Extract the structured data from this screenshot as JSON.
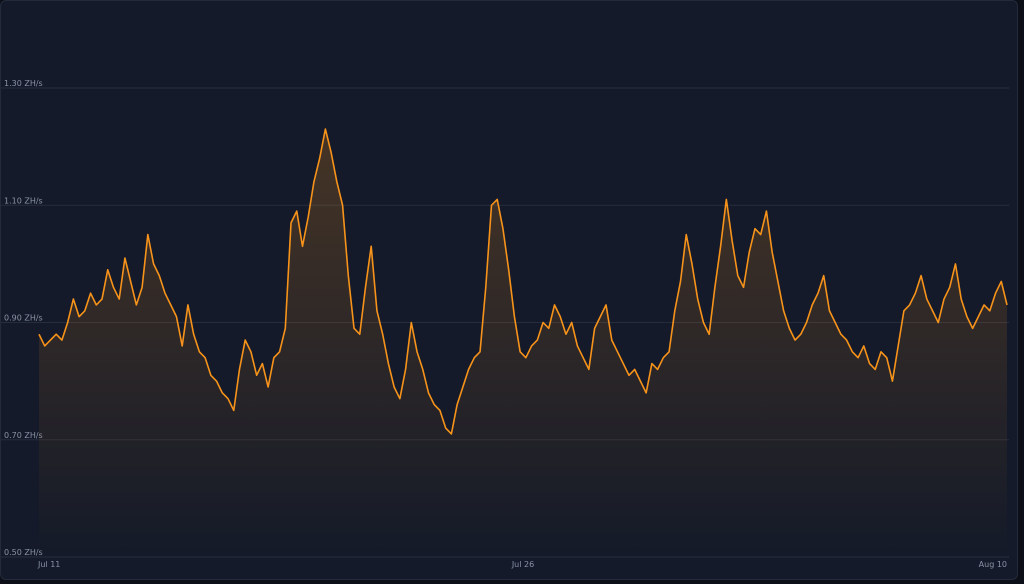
{
  "chart_data": {
    "type": "area",
    "title": "",
    "xlabel": "",
    "ylabel": "",
    "ylim": [
      0.5,
      1.3
    ],
    "y_unit": "ZH/s",
    "y_ticks": [
      "0.50 ZH/s",
      "0.70 ZH/s",
      "0.90 ZH/s",
      "1.10 ZH/s",
      "1.30 ZH/s"
    ],
    "x_ticks": [
      "Jul 11",
      "Jul 26",
      "Aug 10"
    ],
    "grid": true,
    "colors": {
      "line": "#f7931a",
      "grid": "#262d3d",
      "background": "#141a29"
    },
    "series": [
      {
        "values": [
          0.88,
          0.86,
          0.87,
          0.88,
          0.87,
          0.9,
          0.94,
          0.91,
          0.92,
          0.95,
          0.93,
          0.94,
          0.99,
          0.96,
          0.94,
          1.01,
          0.97,
          0.93,
          0.96,
          1.05,
          1.0,
          0.98,
          0.95,
          0.93,
          0.91,
          0.86,
          0.93,
          0.88,
          0.85,
          0.84,
          0.81,
          0.8,
          0.78,
          0.77,
          0.75,
          0.82,
          0.87,
          0.85,
          0.81,
          0.83,
          0.79,
          0.84,
          0.85,
          0.89,
          1.07,
          1.09,
          1.03,
          1.08,
          1.14,
          1.18,
          1.23,
          1.19,
          1.14,
          1.1,
          0.98,
          0.89,
          0.88,
          0.96,
          1.03,
          0.92,
          0.88,
          0.83,
          0.79,
          0.77,
          0.82,
          0.9,
          0.85,
          0.82,
          0.78,
          0.76,
          0.75,
          0.72,
          0.71,
          0.76,
          0.79,
          0.82,
          0.84,
          0.85,
          0.96,
          1.1,
          1.11,
          1.06,
          0.99,
          0.91,
          0.85,
          0.84,
          0.86,
          0.87,
          0.9,
          0.89,
          0.93,
          0.91,
          0.88,
          0.9,
          0.86,
          0.84,
          0.82,
          0.89,
          0.91,
          0.93,
          0.87,
          0.85,
          0.83,
          0.81,
          0.82,
          0.8,
          0.78,
          0.83,
          0.82,
          0.84,
          0.85,
          0.92,
          0.97,
          1.05,
          1.0,
          0.94,
          0.9,
          0.88,
          0.96,
          1.03,
          1.11,
          1.04,
          0.98,
          0.96,
          1.02,
          1.06,
          1.05,
          1.09,
          1.02,
          0.97,
          0.92,
          0.89,
          0.87,
          0.88,
          0.9,
          0.93,
          0.95,
          0.98,
          0.92,
          0.9,
          0.88,
          0.87,
          0.85,
          0.84,
          0.86,
          0.83,
          0.82,
          0.85,
          0.84,
          0.8,
          0.86,
          0.92,
          0.93,
          0.95,
          0.98,
          0.94,
          0.92,
          0.9,
          0.94,
          0.96,
          1.0,
          0.94,
          0.91,
          0.89,
          0.91,
          0.93,
          0.92,
          0.95,
          0.97,
          0.93
        ]
      }
    ]
  }
}
